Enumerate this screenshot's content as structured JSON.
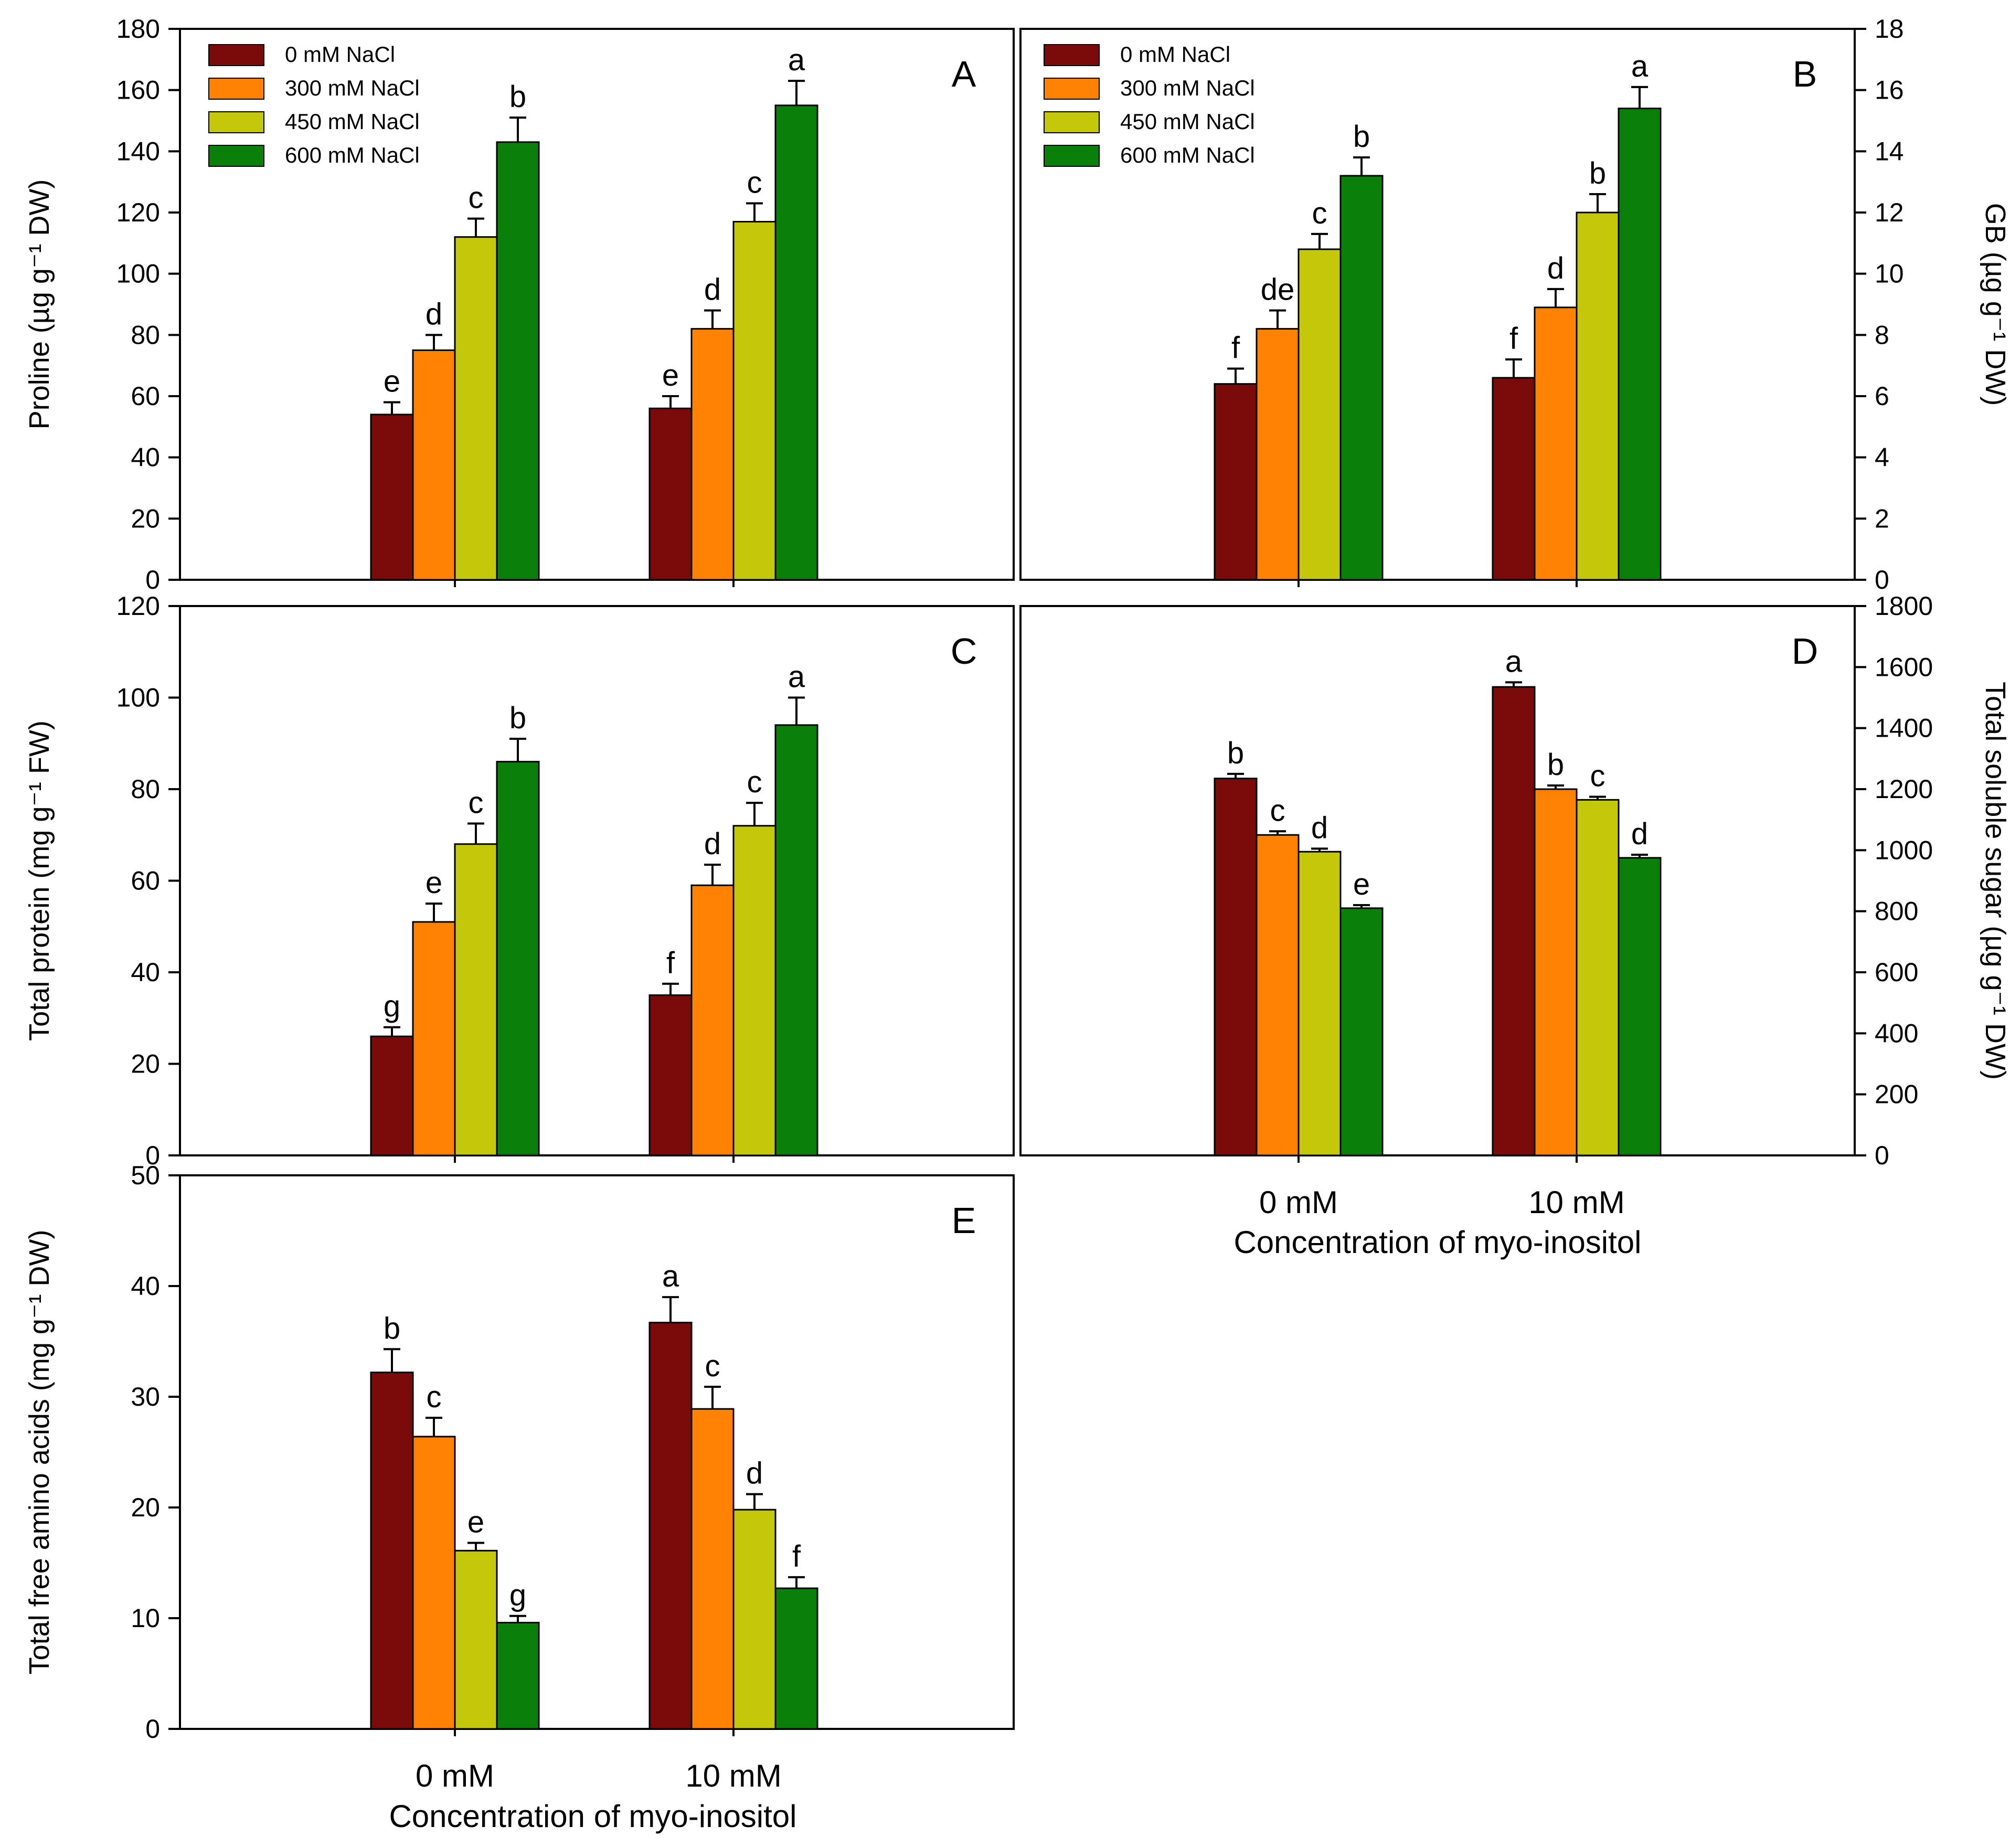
{
  "colors": {
    "s0": "#7B0A0A",
    "s1": "#FF8205",
    "s2": "#C3C80A",
    "s3": "#0A7F0A"
  },
  "legend": [
    "0 mM NaCl",
    "300 mM NaCl",
    "450 mM NaCl",
    "600 mM NaCl"
  ],
  "categories": [
    "0 mM",
    "10 mM"
  ],
  "xlabel": "Concentration of myo-inositol",
  "chart_data": [
    {
      "panel": "A",
      "type": "bar",
      "ylabel": "Proline (µg g⁻¹ DW)",
      "ylim": [
        0,
        180
      ],
      "yticks": [
        0,
        20,
        40,
        60,
        80,
        100,
        120,
        140,
        160,
        180
      ],
      "categories": [
        "0 mM",
        "10 mM"
      ],
      "series": [
        {
          "name": "0 mM NaCl",
          "values": [
            54,
            56
          ],
          "errors": [
            4,
            4
          ],
          "letters": [
            "e",
            "e"
          ]
        },
        {
          "name": "300 mM NaCl",
          "values": [
            75,
            82
          ],
          "errors": [
            5,
            6
          ],
          "letters": [
            "d",
            "d"
          ]
        },
        {
          "name": "450 mM NaCl",
          "values": [
            112,
            117
          ],
          "errors": [
            6,
            6
          ],
          "letters": [
            "c",
            "c"
          ]
        },
        {
          "name": "600 mM NaCl",
          "values": [
            143,
            155
          ],
          "errors": [
            8,
            8
          ],
          "letters": [
            "b",
            "a"
          ]
        }
      ]
    },
    {
      "panel": "B",
      "type": "bar",
      "ylabel": "GB (µg g⁻¹ DW)",
      "ylim": [
        0,
        18
      ],
      "yticks": [
        0,
        2,
        4,
        6,
        8,
        10,
        12,
        14,
        16,
        18
      ],
      "categories": [
        "0 mM",
        "10 mM"
      ],
      "series": [
        {
          "name": "0 mM NaCl",
          "values": [
            6.4,
            6.6
          ],
          "errors": [
            0.5,
            0.6
          ],
          "letters": [
            "f",
            "f"
          ]
        },
        {
          "name": "300 mM NaCl",
          "values": [
            8.2,
            8.9
          ],
          "errors": [
            0.6,
            0.6
          ],
          "letters": [
            "de",
            "d"
          ]
        },
        {
          "name": "450 mM NaCl",
          "values": [
            10.8,
            12.0
          ],
          "errors": [
            0.5,
            0.6
          ],
          "letters": [
            "c",
            "b"
          ]
        },
        {
          "name": "600 mM NaCl",
          "values": [
            13.2,
            15.4
          ],
          "errors": [
            0.6,
            0.7
          ],
          "letters": [
            "b",
            "a"
          ]
        }
      ]
    },
    {
      "panel": "C",
      "type": "bar",
      "ylabel": "Total protein (mg g⁻¹ FW)",
      "ylim": [
        0,
        120
      ],
      "yticks": [
        0,
        20,
        40,
        60,
        80,
        100,
        120
      ],
      "categories": [
        "0 mM",
        "10 mM"
      ],
      "series": [
        {
          "name": "0 mM NaCl",
          "values": [
            26,
            35
          ],
          "errors": [
            2,
            2.5
          ],
          "letters": [
            "g",
            "f"
          ]
        },
        {
          "name": "300 mM NaCl",
          "values": [
            51,
            59
          ],
          "errors": [
            4,
            4.5
          ],
          "letters": [
            "e",
            "d"
          ]
        },
        {
          "name": "450 mM NaCl",
          "values": [
            68,
            72
          ],
          "errors": [
            4.5,
            5
          ],
          "letters": [
            "c",
            "c"
          ]
        },
        {
          "name": "600 mM NaCl",
          "values": [
            86,
            94
          ],
          "errors": [
            5,
            6
          ],
          "letters": [
            "b",
            "a"
          ]
        }
      ]
    },
    {
      "panel": "D",
      "type": "bar",
      "ylabel": "Total soluble sugar (µg g⁻¹ DW)",
      "ylim": [
        0,
        1800
      ],
      "yticks": [
        0,
        200,
        400,
        600,
        800,
        1000,
        1200,
        1400,
        1600,
        1800
      ],
      "categories": [
        "0 mM",
        "10 mM"
      ],
      "series": [
        {
          "name": "0 mM NaCl",
          "values": [
            1235,
            1535
          ],
          "errors": [
            15,
            15
          ],
          "letters": [
            "b",
            "a"
          ]
        },
        {
          "name": "300 mM NaCl",
          "values": [
            1050,
            1200
          ],
          "errors": [
            12,
            12
          ],
          "letters": [
            "c",
            "b"
          ]
        },
        {
          "name": "450 mM NaCl",
          "values": [
            995,
            1165
          ],
          "errors": [
            10,
            10
          ],
          "letters": [
            "d",
            "c"
          ]
        },
        {
          "name": "600 mM NaCl",
          "values": [
            810,
            975
          ],
          "errors": [
            10,
            10
          ],
          "letters": [
            "e",
            "d"
          ]
        }
      ]
    },
    {
      "panel": "E",
      "type": "bar",
      "ylabel": "Total free amino acids (mg g⁻¹ DW)",
      "ylim": [
        0,
        50
      ],
      "yticks": [
        0,
        10,
        20,
        30,
        40,
        50
      ],
      "categories": [
        "0 mM",
        "10 mM"
      ],
      "series": [
        {
          "name": "0 mM NaCl",
          "values": [
            32.2,
            36.7
          ],
          "errors": [
            2.1,
            2.3
          ],
          "letters": [
            "b",
            "a"
          ]
        },
        {
          "name": "300 mM NaCl",
          "values": [
            26.4,
            28.9
          ],
          "errors": [
            1.7,
            2.0
          ],
          "letters": [
            "c",
            "c"
          ]
        },
        {
          "name": "450 mM NaCl",
          "values": [
            16.1,
            19.8
          ],
          "errors": [
            0.7,
            1.4
          ],
          "letters": [
            "e",
            "d"
          ]
        },
        {
          "name": "600 mM NaCl",
          "values": [
            9.6,
            12.7
          ],
          "errors": [
            0.6,
            1.0
          ],
          "letters": [
            "g",
            "f"
          ]
        }
      ]
    }
  ]
}
